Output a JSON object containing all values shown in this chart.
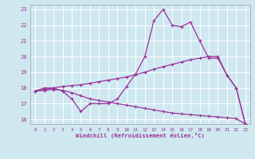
{
  "background_color": "#cfe8f0",
  "grid_color": "#ffffff",
  "line_color": "#993399",
  "spine_color": "#aaaaaa",
  "xlabel": "Windchill (Refroidissement éolien,°C)",
  "xlim": [
    -0.5,
    23.5
  ],
  "ylim": [
    15.7,
    23.3
  ],
  "yticks": [
    16,
    17,
    18,
    19,
    20,
    21,
    22,
    23
  ],
  "xticks": [
    0,
    1,
    2,
    3,
    4,
    5,
    6,
    7,
    8,
    9,
    10,
    11,
    12,
    13,
    14,
    15,
    16,
    17,
    18,
    19,
    20,
    21,
    22,
    23
  ],
  "line1_x": [
    0,
    1,
    2,
    3,
    4,
    5,
    6,
    7,
    8,
    9,
    10,
    11,
    12,
    13,
    14,
    15,
    16,
    17,
    18,
    19,
    20,
    21,
    22,
    23
  ],
  "line1_y": [
    17.8,
    18.0,
    18.0,
    17.8,
    17.3,
    16.5,
    17.0,
    17.0,
    17.0,
    17.3,
    18.1,
    18.9,
    20.0,
    22.3,
    23.0,
    22.0,
    21.9,
    22.2,
    21.0,
    19.9,
    19.9,
    18.8,
    18.0,
    15.7
  ],
  "line2_x": [
    0,
    1,
    2,
    3,
    4,
    5,
    6,
    7,
    8,
    9,
    10,
    11,
    12,
    13,
    14,
    15,
    16,
    17,
    18,
    19,
    20,
    21,
    22,
    23
  ],
  "line2_y": [
    17.8,
    17.9,
    18.0,
    18.1,
    18.15,
    18.2,
    18.3,
    18.4,
    18.5,
    18.6,
    18.7,
    18.85,
    19.0,
    19.2,
    19.35,
    19.5,
    19.65,
    19.8,
    19.9,
    20.0,
    20.0,
    18.8,
    18.0,
    15.7
  ],
  "line3_x": [
    0,
    1,
    2,
    3,
    4,
    5,
    6,
    7,
    8,
    9,
    10,
    11,
    12,
    13,
    14,
    15,
    16,
    17,
    18,
    19,
    20,
    21,
    22,
    23
  ],
  "line3_y": [
    17.8,
    17.85,
    17.9,
    17.85,
    17.7,
    17.5,
    17.3,
    17.2,
    17.1,
    17.0,
    16.9,
    16.8,
    16.7,
    16.6,
    16.5,
    16.4,
    16.35,
    16.3,
    16.25,
    16.2,
    16.15,
    16.1,
    16.05,
    15.7
  ]
}
